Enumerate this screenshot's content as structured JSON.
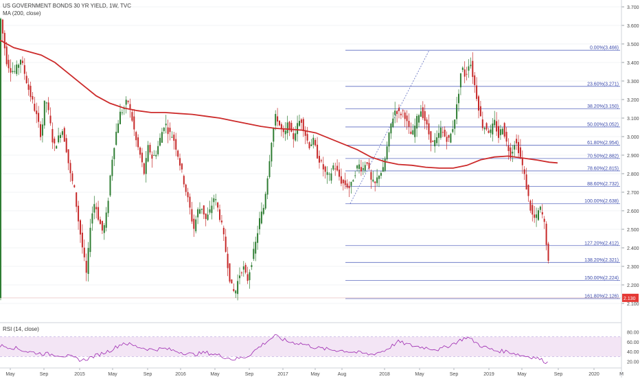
{
  "header": {
    "symbol_title": "US GOVERNMENT BONDS 30 YR YIELD, 1W, TVC",
    "ma_label": "MA (200, close)"
  },
  "rsi_panel": {
    "label": "RSI (14, close)",
    "y_ticks": [
      "80.00",
      "60.00",
      "40.00",
      "20.00"
    ]
  },
  "chart_data": {
    "type": "candlestick",
    "title": "US GOVERNMENT BONDS 30 YR YIELD, 1W, TVC",
    "price_axis": {
      "ylim": [
        2.05,
        3.72
      ],
      "ticks": [
        "3.700",
        "3.600",
        "3.500",
        "3.400",
        "3.300",
        "3.200",
        "3.100",
        "3.000",
        "2.900",
        "2.800",
        "2.700",
        "2.600",
        "2.500",
        "2.400",
        "2.300",
        "2.200",
        "2.100"
      ]
    },
    "last_price": "2.130",
    "x_axis_labels": [
      "May",
      "Sep",
      "2015",
      "May",
      "Sep",
      "2016",
      "May",
      "Sep",
      "2017",
      "May",
      "Aug",
      "2018",
      "May",
      "Sep",
      "2019",
      "May",
      "Sep",
      "2020",
      "M"
    ],
    "series": [
      {
        "name": "US GOVERNMENT BONDS 30 YR YIELD",
        "kind": "candles",
        "bull_color": "#2e7d32",
        "bear_color": "#c62828",
        "path": [
          [
            0,
            3.66
          ],
          [
            6,
            3.5
          ],
          [
            10,
            3.4
          ],
          [
            16,
            3.36
          ],
          [
            22,
            3.35
          ],
          [
            30,
            3.42
          ],
          [
            36,
            3.34
          ],
          [
            42,
            3.25
          ],
          [
            48,
            3.18
          ],
          [
            54,
            3.1
          ],
          [
            60,
            3.0
          ],
          [
            66,
            3.22
          ],
          [
            72,
            3.1
          ],
          [
            78,
            2.94
          ],
          [
            84,
            2.98
          ],
          [
            90,
            3.05
          ],
          [
            96,
            2.95
          ],
          [
            102,
            2.8
          ],
          [
            108,
            2.72
          ],
          [
            114,
            2.55
          ],
          [
            120,
            2.4
          ],
          [
            126,
            2.25
          ],
          [
            132,
            2.55
          ],
          [
            138,
            2.65
          ],
          [
            144,
            2.55
          ],
          [
            150,
            2.48
          ],
          [
            156,
            2.6
          ],
          [
            162,
            2.85
          ],
          [
            168,
            3.0
          ],
          [
            174,
            3.12
          ],
          [
            180,
            3.15
          ],
          [
            186,
            3.2
          ],
          [
            192,
            3.1
          ],
          [
            198,
            2.98
          ],
          [
            204,
            2.9
          ],
          [
            210,
            2.8
          ],
          [
            216,
            2.95
          ],
          [
            222,
            2.88
          ],
          [
            228,
            2.92
          ],
          [
            234,
            3.0
          ],
          [
            240,
            3.08
          ],
          [
            246,
            3.02
          ],
          [
            252,
            3.0
          ],
          [
            258,
            2.92
          ],
          [
            264,
            2.82
          ],
          [
            270,
            2.72
          ],
          [
            276,
            2.62
          ],
          [
            282,
            2.5
          ],
          [
            288,
            2.6
          ],
          [
            294,
            2.62
          ],
          [
            300,
            2.55
          ],
          [
            306,
            2.6
          ],
          [
            312,
            2.68
          ],
          [
            318,
            2.6
          ],
          [
            324,
            2.5
          ],
          [
            330,
            2.35
          ],
          [
            336,
            2.2
          ],
          [
            342,
            2.15
          ],
          [
            348,
            2.25
          ],
          [
            354,
            2.3
          ],
          [
            360,
            2.22
          ],
          [
            366,
            2.32
          ],
          [
            372,
            2.42
          ],
          [
            378,
            2.55
          ],
          [
            384,
            2.62
          ],
          [
            390,
            2.8
          ],
          [
            396,
            3.0
          ],
          [
            402,
            3.12
          ],
          [
            408,
            3.05
          ],
          [
            414,
            3.0
          ],
          [
            420,
            3.08
          ],
          [
            426,
            2.98
          ],
          [
            432,
            3.05
          ],
          [
            438,
            3.1
          ],
          [
            444,
            3.02
          ],
          [
            450,
            2.95
          ],
          [
            456,
            2.98
          ],
          [
            462,
            2.9
          ],
          [
            468,
            2.85
          ],
          [
            474,
            2.8
          ],
          [
            480,
            2.78
          ],
          [
            486,
            2.85
          ],
          [
            492,
            2.8
          ],
          [
            498,
            2.75
          ],
          [
            504,
            2.74
          ],
          [
            510,
            2.72
          ],
          [
            516,
            2.8
          ],
          [
            522,
            2.85
          ],
          [
            528,
            2.82
          ],
          [
            534,
            2.88
          ],
          [
            540,
            2.76
          ],
          [
            546,
            2.74
          ],
          [
            552,
            2.8
          ],
          [
            558,
            2.82
          ],
          [
            564,
            2.95
          ],
          [
            570,
            3.08
          ],
          [
            576,
            3.15
          ],
          [
            582,
            3.12
          ],
          [
            588,
            3.14
          ],
          [
            594,
            3.05
          ],
          [
            600,
            3.0
          ],
          [
            606,
            3.08
          ],
          [
            612,
            3.15
          ],
          [
            618,
            3.1
          ],
          [
            624,
            3.02
          ],
          [
            630,
            2.96
          ],
          [
            636,
            2.98
          ],
          [
            642,
            3.04
          ],
          [
            648,
            3.0
          ],
          [
            654,
            2.98
          ],
          [
            660,
            3.06
          ],
          [
            666,
            3.18
          ],
          [
            672,
            3.38
          ],
          [
            678,
            3.32
          ],
          [
            684,
            3.42
          ],
          [
            690,
            3.3
          ],
          [
            696,
            3.18
          ],
          [
            702,
            3.06
          ],
          [
            708,
            3.05
          ],
          [
            714,
            3.02
          ],
          [
            720,
            3.08
          ],
          [
            726,
            3.0
          ],
          [
            732,
            3.06
          ],
          [
            738,
            2.96
          ],
          [
            744,
            2.9
          ],
          [
            750,
            2.98
          ],
          [
            756,
            2.92
          ],
          [
            762,
            2.82
          ],
          [
            768,
            2.7
          ],
          [
            774,
            2.58
          ],
          [
            780,
            2.55
          ],
          [
            786,
            2.62
          ],
          [
            792,
            2.55
          ],
          [
            798,
            2.35
          ],
          [
            801,
            2.13
          ]
        ]
      },
      {
        "name": "MA (200, close)",
        "kind": "line",
        "color": "#cc2a2a",
        "path": [
          [
            0,
            3.52
          ],
          [
            20,
            3.48
          ],
          [
            40,
            3.46
          ],
          [
            60,
            3.44
          ],
          [
            80,
            3.4
          ],
          [
            100,
            3.34
          ],
          [
            120,
            3.28
          ],
          [
            140,
            3.22
          ],
          [
            160,
            3.18
          ],
          [
            180,
            3.155
          ],
          [
            200,
            3.14
          ],
          [
            220,
            3.13
          ],
          [
            240,
            3.13
          ],
          [
            260,
            3.125
          ],
          [
            280,
            3.12
          ],
          [
            300,
            3.11
          ],
          [
            320,
            3.1
          ],
          [
            340,
            3.085
          ],
          [
            360,
            3.07
          ],
          [
            380,
            3.055
          ],
          [
            400,
            3.045
          ],
          [
            420,
            3.04
          ],
          [
            440,
            3.035
          ],
          [
            460,
            3.02
          ],
          [
            480,
            2.99
          ],
          [
            500,
            2.96
          ],
          [
            520,
            2.93
          ],
          [
            540,
            2.89
          ],
          [
            560,
            2.865
          ],
          [
            580,
            2.85
          ],
          [
            600,
            2.845
          ],
          [
            620,
            2.835
          ],
          [
            640,
            2.83
          ],
          [
            660,
            2.83
          ],
          [
            680,
            2.845
          ],
          [
            700,
            2.875
          ],
          [
            720,
            2.89
          ],
          [
            740,
            2.895
          ],
          [
            760,
            2.885
          ],
          [
            780,
            2.875
          ],
          [
            800,
            2.862
          ],
          [
            812,
            2.858
          ]
        ]
      }
    ],
    "fibonacci": {
      "x_range": [
        503,
        903
      ],
      "levels": [
        {
          "label": "0.00%(3.466)",
          "value": 3.466
        },
        {
          "label": "23.60%(3.271)",
          "value": 3.271
        },
        {
          "label": "38.20%(3.150)",
          "value": 3.15
        },
        {
          "label": "50.00%(3.052)",
          "value": 3.052
        },
        {
          "label": "61.80%(2.954)",
          "value": 2.954
        },
        {
          "label": "70.50%(2.882)",
          "value": 2.882
        },
        {
          "label": "78.60%(2.815)",
          "value": 2.815
        },
        {
          "label": "88.60%(2.732)",
          "value": 2.732
        },
        {
          "label": "100.00%(2.638)",
          "value": 2.638
        },
        {
          "label": "127.20%(2.412)",
          "value": 2.412
        },
        {
          "label": "138.20%(2.321)",
          "value": 2.321
        },
        {
          "label": "150.00%(2.224)",
          "value": 2.224
        },
        {
          "label": "161.80%(2.126)",
          "value": 2.126
        }
      ],
      "trend_line": [
        [
          510,
          2.638
        ],
        [
          625,
          3.466
        ]
      ]
    },
    "rsi": {
      "ylim": [
        15,
        85
      ],
      "upper_band": 70,
      "lower_band": 30,
      "color": "#9c27b0",
      "path": [
        [
          0,
          52
        ],
        [
          20,
          48
        ],
        [
          40,
          40
        ],
        [
          60,
          36
        ],
        [
          80,
          34
        ],
        [
          100,
          30
        ],
        [
          120,
          22
        ],
        [
          140,
          32
        ],
        [
          160,
          42
        ],
        [
          180,
          58
        ],
        [
          200,
          50
        ],
        [
          220,
          44
        ],
        [
          240,
          46
        ],
        [
          260,
          40
        ],
        [
          280,
          34
        ],
        [
          300,
          38
        ],
        [
          320,
          32
        ],
        [
          340,
          24
        ],
        [
          360,
          30
        ],
        [
          380,
          52
        ],
        [
          400,
          72
        ],
        [
          420,
          60
        ],
        [
          440,
          56
        ],
        [
          460,
          48
        ],
        [
          480,
          44
        ],
        [
          500,
          42
        ],
        [
          520,
          38
        ],
        [
          540,
          34
        ],
        [
          560,
          42
        ],
        [
          580,
          60
        ],
        [
          600,
          52
        ],
        [
          620,
          48
        ],
        [
          640,
          44
        ],
        [
          660,
          56
        ],
        [
          680,
          70
        ],
        [
          700,
          52
        ],
        [
          720,
          42
        ],
        [
          740,
          40
        ],
        [
          760,
          32
        ],
        [
          780,
          28
        ],
        [
          800,
          16
        ]
      ]
    }
  }
}
